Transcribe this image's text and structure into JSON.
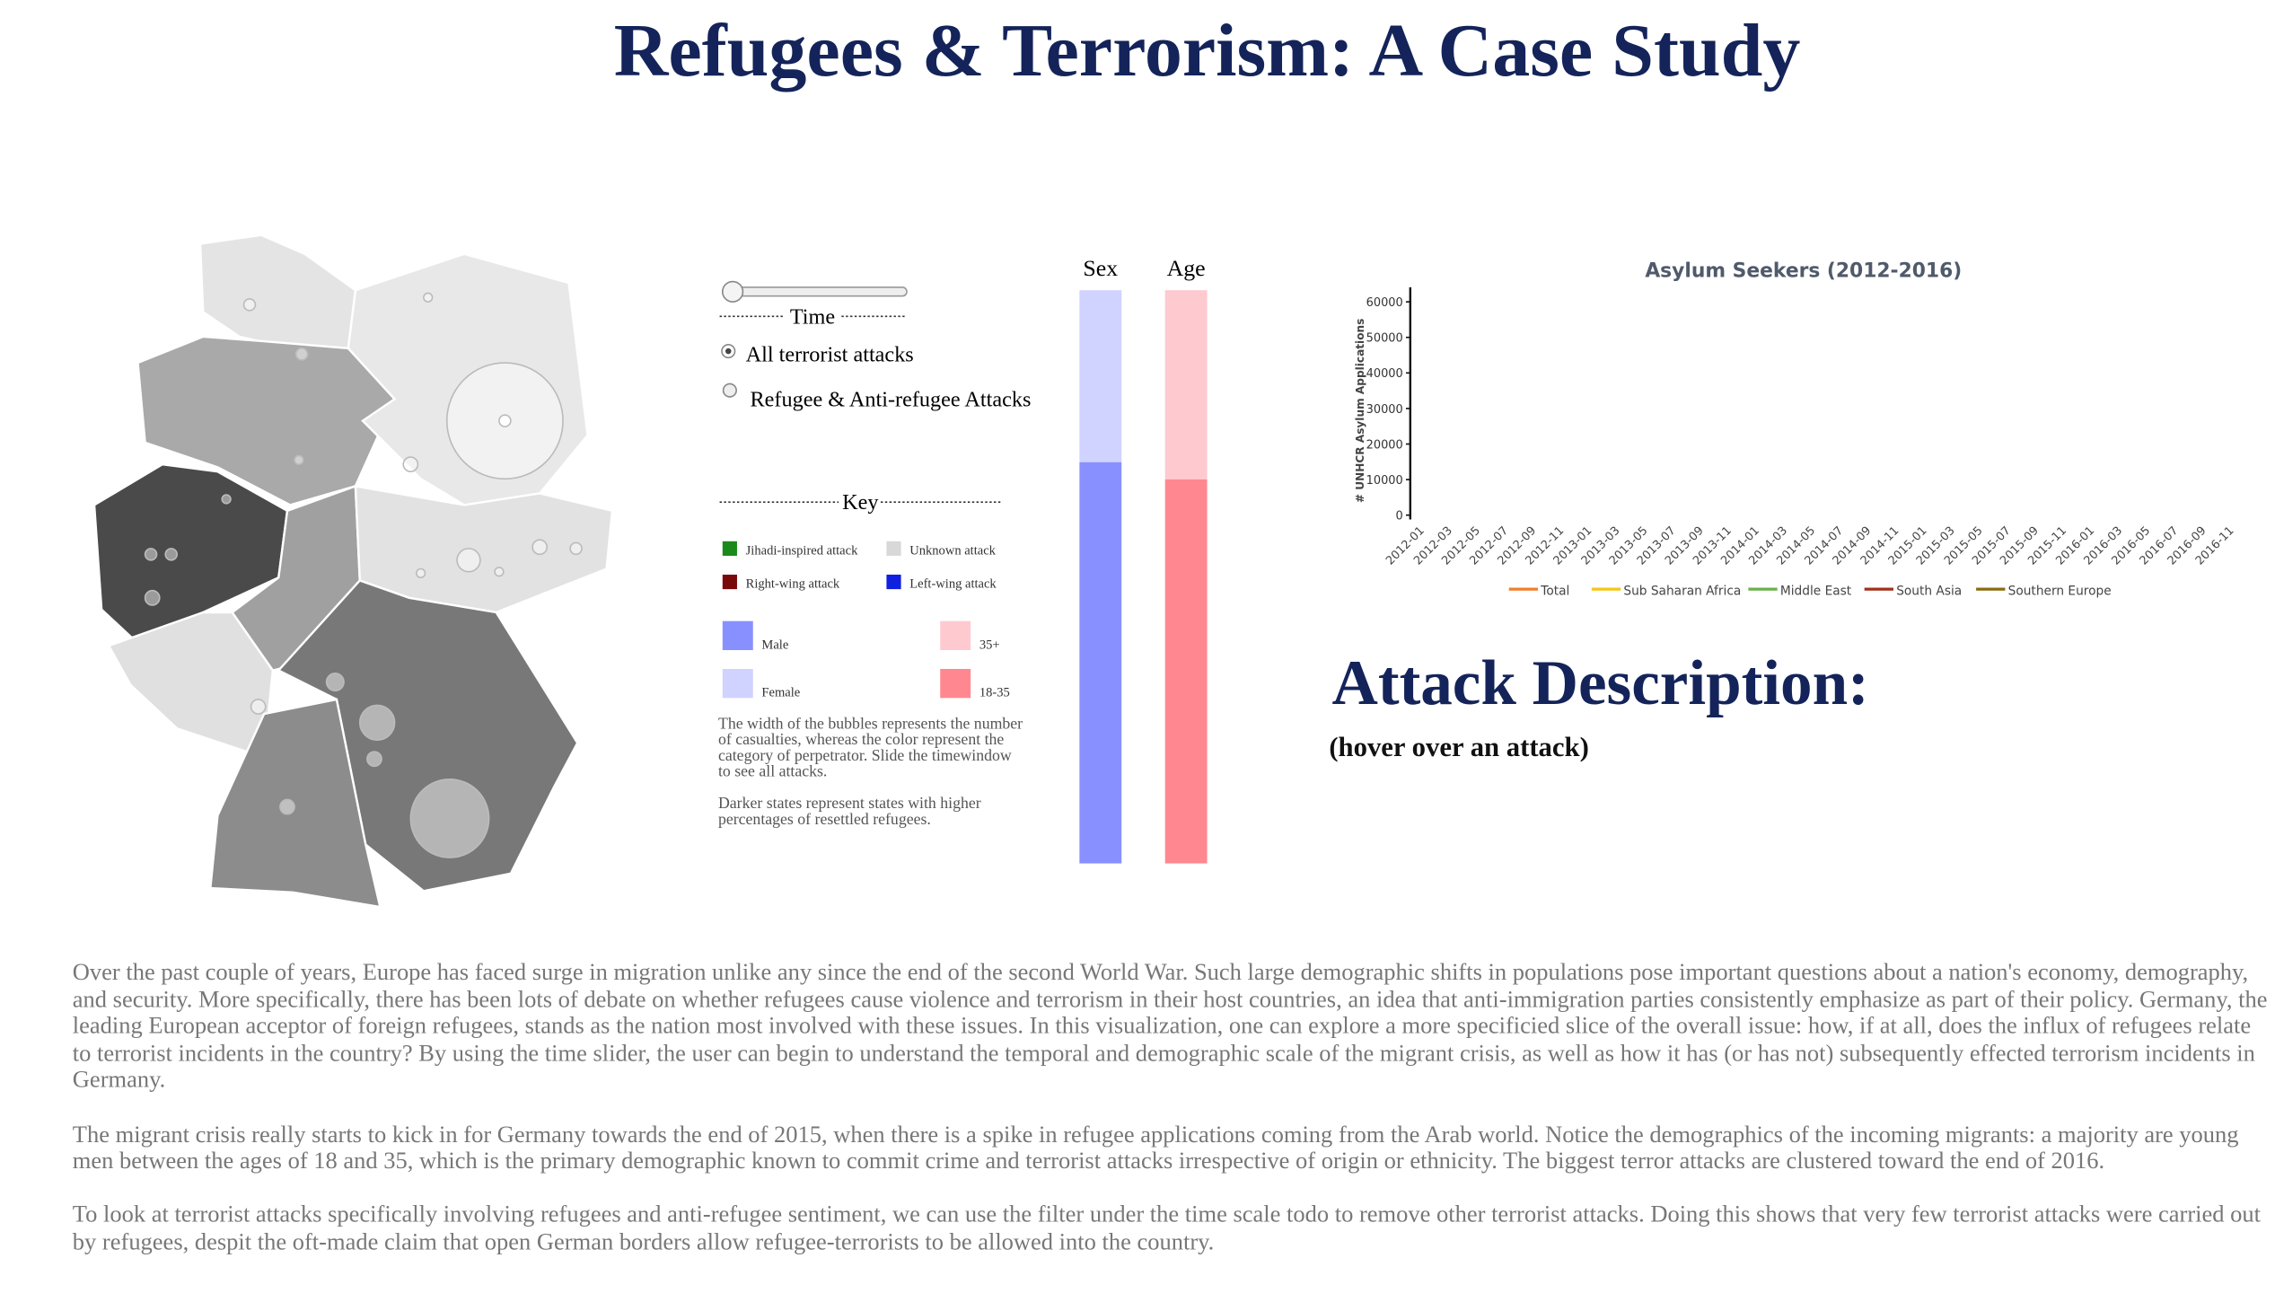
{
  "header": {
    "title": "Refugees & Terrorism: A Case Study"
  },
  "controls": {
    "time_label": "Time",
    "radio": [
      "All terrorist attacks",
      "Refugee & Anti-refugee Attacks"
    ],
    "key_label": "Key"
  },
  "key": {
    "attacks": [
      {
        "label": "Jihadi-inspired attack",
        "color": "#1a8a1a"
      },
      {
        "label": "Unknown attack",
        "color": "#d8d8d8"
      },
      {
        "label": "Right-wing attack",
        "color": "#7a0a0a"
      },
      {
        "label": "Left-wing attack",
        "color": "#1020e0"
      }
    ],
    "demographics": [
      {
        "label": "Male",
        "color": "#8890ff"
      },
      {
        "label": "35+",
        "color": "#ffc9d0"
      },
      {
        "label": "Female",
        "color": "#d0d2ff"
      },
      {
        "label": "18-35",
        "color": "#ff8890"
      }
    ],
    "notes": [
      "The width of the bubbles represents the number of casualties, whereas the color represent the category of perpetrator. Slide the timewindow to see all attacks.",
      "Darker states represent states with higher percentages of resettled refugees."
    ]
  },
  "bars": {
    "sex": {
      "title": "Sex",
      "values": [
        30,
        70
      ],
      "colors": [
        "#d0d2ff",
        "#8890ff"
      ]
    },
    "age": {
      "title": "Age",
      "values": [
        33,
        67
      ],
      "colors": [
        "#ffc9d0",
        "#ff8890"
      ]
    }
  },
  "chart_data": {
    "type": "line",
    "title": "Asylum Seekers (2012-2016)",
    "y_label": "# UNHCR Asylum Applications",
    "categories": [
      "2012-01",
      "2012-03",
      "2012-05",
      "2012-07",
      "2012-09",
      "2012-11",
      "2013-01",
      "2013-03",
      "2013-05",
      "2013-07",
      "2013-09",
      "2013-11",
      "2014-01",
      "2014-03",
      "2014-05",
      "2014-07",
      "2014-09",
      "2014-11",
      "2015-01",
      "2015-03",
      "2015-05",
      "2015-07",
      "2015-09",
      "2015-11",
      "2016-01",
      "2016-03",
      "2016-05",
      "2016-07",
      "2016-09",
      "2016-11"
    ],
    "ylim": [
      0,
      60000
    ],
    "yticks": [
      0,
      10000,
      20000,
      30000,
      40000,
      50000,
      60000
    ],
    "series": [
      {
        "name": "Total",
        "color": "#f07f2a"
      },
      {
        "name": "Sub Saharan Africa",
        "color": "#f5c518"
      },
      {
        "name": "Middle East",
        "color": "#6ab04c"
      },
      {
        "name": "South Asia",
        "color": "#a0301a"
      },
      {
        "name": "Southern Europe",
        "color": "#8a6a10"
      }
    ]
  },
  "description": {
    "title": "Attack Description:",
    "hint": "(hover over an attack)"
  },
  "article": {
    "paragraphs": [
      "Over the past couple of years, Europe has faced surge in migration unlike any since the end of the second World War. Such large demographic shifts in populations pose important questions about a nation's economy, demography, and security. More specifically, there has been lots of debate on whether refugees cause violence and terrorism in their host countries, an idea that anti-immigration parties consistently emphasize as part of their policy. Germany, the leading European acceptor of foreign refugees, stands as the nation most involved with these issues. In this visualization, one can explore a more specificied slice of the overall issue: how, if at all, does the influx of refugees relate to terrorist incidents in the country? By using the time slider, the user can begin to understand the temporal and demographic scale of the migrant crisis, as well as how it has (or has not) subsequently effected terrorism incidents in Germany.",
      "The migrant crisis really starts to kick in for Germany towards the end of 2015, when there is a spike in refugee applications coming from the Arab world. Notice the demographics of the incoming migrants: a majority are young men between the ages of 18 and 35, which is the primary demographic known to commit crime and terrorist attacks irrespective of origin or ethnicity. The biggest terror attacks are clustered toward the end of 2016.",
      "To look at terrorist attacks specifically involving refugees and anti-refugee sentiment, we can use the filter under the time scale todo to remove other terrorist attacks. Doing this shows that very few terrorist attacks were carried out by refugees, despit the oft-made claim that open German borders allow refugee-terrorists to be allowed into the country."
    ]
  }
}
